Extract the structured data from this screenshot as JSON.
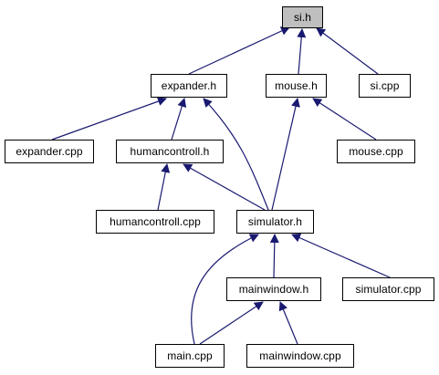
{
  "graph": {
    "edge_color": "#191970",
    "focus_fill": "#bfbfbf",
    "nodes": {
      "si_h": {
        "label": "si.h",
        "focus": true
      },
      "expander_h": {
        "label": "expander.h"
      },
      "mouse_h": {
        "label": "mouse.h"
      },
      "si_cpp": {
        "label": "si.cpp"
      },
      "expander_cpp": {
        "label": "expander.cpp"
      },
      "humancontroll_h": {
        "label": "humancontroll.h"
      },
      "mouse_cpp": {
        "label": "mouse.cpp"
      },
      "humancontroll_cpp": {
        "label": "humancontroll.cpp"
      },
      "simulator_h": {
        "label": "simulator.h"
      },
      "mainwindow_h": {
        "label": "mainwindow.h"
      },
      "simulator_cpp": {
        "label": "simulator.cpp"
      },
      "main_cpp": {
        "label": "main.cpp"
      },
      "mainwindow_cpp": {
        "label": "mainwindow.cpp"
      }
    },
    "edges": [
      {
        "from": "expander_h",
        "to": "si_h"
      },
      {
        "from": "mouse_h",
        "to": "si_h"
      },
      {
        "from": "si_cpp",
        "to": "si_h"
      },
      {
        "from": "expander_cpp",
        "to": "expander_h"
      },
      {
        "from": "humancontroll_h",
        "to": "expander_h"
      },
      {
        "from": "simulator_h",
        "to": "expander_h"
      },
      {
        "from": "mouse_cpp",
        "to": "mouse_h"
      },
      {
        "from": "simulator_h",
        "to": "mouse_h"
      },
      {
        "from": "humancontroll_cpp",
        "to": "humancontroll_h"
      },
      {
        "from": "simulator_h",
        "to": "humancontroll_h"
      },
      {
        "from": "mainwindow_h",
        "to": "simulator_h"
      },
      {
        "from": "simulator_cpp",
        "to": "simulator_h"
      },
      {
        "from": "main_cpp",
        "to": "simulator_h"
      },
      {
        "from": "main_cpp",
        "to": "mainwindow_h"
      },
      {
        "from": "mainwindow_cpp",
        "to": "mainwindow_h"
      }
    ]
  }
}
